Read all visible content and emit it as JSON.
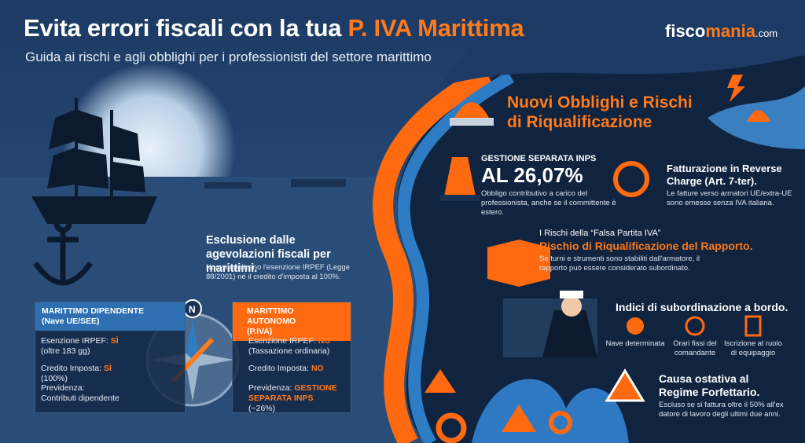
{
  "header": {
    "title": "Evita errori fiscali con la tua",
    "title_highlight": "P. IVA Marittima",
    "subtitle": "Guida ai rischi e agli obblighi per i professionisti del settore marittimo",
    "brand": {
      "part1": "fisco",
      "part2": "mania",
      "part3": ".com"
    }
  },
  "exclusion": {
    "title": "Esclusione dalle agevolazioni fiscali per marittimi.",
    "text": "Non si applicano l'esenzione IRPEF (Legge 88/2001) né il credito d'imposta al 100%."
  },
  "comparison": {
    "compass_label": "N",
    "left": {
      "title": "MARITTIMO DIPENDENTE",
      "subtitle": "(Nave UE/SEE)",
      "rows": [
        {
          "label": "Esenzione IRPEF:",
          "value": "SÌ",
          "note": "(oltre 183 gg)"
        },
        {
          "label": "Credito Imposta:",
          "value": "SÌ",
          "note": "(100%)"
        },
        {
          "label": "Previdenza:",
          "value": "",
          "note": "Contributi dipendente"
        }
      ]
    },
    "right": {
      "title": "MARITTIMO AUTONOMO",
      "subtitle": "(P.IVA)",
      "rows": [
        {
          "label": "Esenzione IRPEF:",
          "value": "NO",
          "note": "(Tassazione ordinaria)"
        },
        {
          "label": "Credito Imposta:",
          "value": "NO",
          "note": ""
        },
        {
          "label": "Previdenza:",
          "value": "GESTIONE SEPARATA INPS",
          "note": "(~26%)"
        }
      ]
    }
  },
  "obligations": {
    "title_line1": "Nuovi Obblighi e Rischi",
    "title_line2": "di Riqualificazione",
    "inps": {
      "label": "GESTIONE SEPARATA INPS",
      "value": "AL 26,07%",
      "text": "Obbligo contributivo a carico del professionista, anche se il committente è estero."
    },
    "reverse_charge": {
      "title": "Fatturazione in Reverse Charge (Art. 7-ter).",
      "text": "Le fatture verso armatori UE/extra-UE sono emesse senza IVA italiana."
    },
    "risk": {
      "kicker": "I Rischi della “Falsa Partita IVA”",
      "title": "Rischio di Riqualificazione del Rapporto.",
      "text": "Se turni e strumenti sono stabiliti dall'armatore, il rapporto può essere considerato subordinato."
    },
    "indices": {
      "title": "Indici di subordinazione a bordo.",
      "items": [
        "Nave determinata",
        "Orari fissi del comandante",
        "Iscrizione al ruolo di equipaggio"
      ]
    },
    "cause": {
      "title": "Causa ostativa al Regime Forfettario.",
      "text": "Escluso se si fattura oltre il 50% all'ex datore di lavoro degli ultimi due anni."
    }
  }
}
